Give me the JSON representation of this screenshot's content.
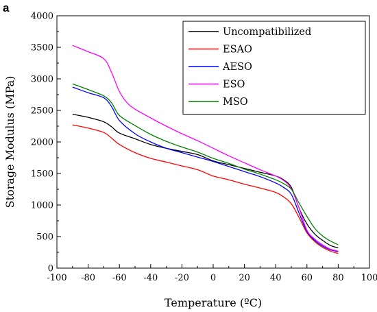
{
  "chart_data": {
    "type": "line",
    "panel_label": "a",
    "xlabel": "Temperature (ºC)",
    "ylabel": "Storage Modulus (MPa)",
    "xlim": [
      -100,
      100
    ],
    "ylim": [
      0,
      4000
    ],
    "xticks": [
      -100,
      -80,
      -60,
      -40,
      -20,
      0,
      20,
      40,
      60,
      80,
      100
    ],
    "yticks": [
      0,
      500,
      1000,
      1500,
      2000,
      2500,
      3000,
      3500,
      4000
    ],
    "legend_position": "top-right",
    "series": [
      {
        "name": "Uncompatibilized",
        "color": "#000000",
        "x": [
          -90,
          -80,
          -70,
          -65,
          -60,
          -50,
          -40,
          -30,
          -20,
          -10,
          0,
          10,
          20,
          30,
          40,
          45,
          50,
          55,
          60,
          65,
          70,
          75,
          80
        ],
        "y": [
          2440,
          2390,
          2320,
          2240,
          2140,
          2050,
          1960,
          1900,
          1850,
          1800,
          1700,
          1640,
          1580,
          1520,
          1460,
          1400,
          1280,
          950,
          700,
          540,
          440,
          360,
          320
        ]
      },
      {
        "name": "ESAO",
        "color": "#ff0000",
        "x": [
          -90,
          -80,
          -70,
          -65,
          -60,
          -50,
          -40,
          -30,
          -20,
          -10,
          0,
          10,
          20,
          30,
          40,
          45,
          50,
          55,
          60,
          65,
          70,
          75,
          80
        ],
        "y": [
          2270,
          2220,
          2150,
          2060,
          1960,
          1830,
          1740,
          1680,
          1620,
          1560,
          1460,
          1400,
          1330,
          1270,
          1200,
          1130,
          1020,
          800,
          560,
          420,
          330,
          270,
          230
        ]
      },
      {
        "name": "AESO",
        "color": "#0000ff",
        "x": [
          -90,
          -80,
          -70,
          -65,
          -60,
          -50,
          -40,
          -30,
          -20,
          -10,
          0,
          10,
          20,
          30,
          40,
          45,
          50,
          55,
          60,
          65,
          70,
          75,
          80
        ],
        "y": [
          2870,
          2780,
          2700,
          2560,
          2340,
          2130,
          2000,
          1900,
          1830,
          1760,
          1690,
          1610,
          1530,
          1450,
          1350,
          1280,
          1170,
          870,
          580,
          440,
          350,
          290,
          260
        ]
      },
      {
        "name": "ESO",
        "color": "#ff00ff",
        "x": [
          -90,
          -80,
          -70,
          -65,
          -60,
          -55,
          -50,
          -40,
          -30,
          -20,
          -10,
          0,
          10,
          20,
          30,
          40,
          45,
          50,
          55,
          60,
          65,
          70,
          75,
          80
        ],
        "y": [
          3530,
          3430,
          3320,
          3100,
          2800,
          2620,
          2520,
          2380,
          2250,
          2130,
          2020,
          1900,
          1780,
          1670,
          1560,
          1460,
          1390,
          1260,
          950,
          600,
          460,
          370,
          300,
          270
        ]
      },
      {
        "name": "MSO",
        "color": "#008000",
        "x": [
          -90,
          -80,
          -70,
          -65,
          -60,
          -50,
          -40,
          -30,
          -20,
          -10,
          0,
          10,
          20,
          30,
          40,
          45,
          50,
          55,
          60,
          65,
          70,
          75,
          80
        ],
        "y": [
          2920,
          2830,
          2730,
          2620,
          2420,
          2260,
          2120,
          2010,
          1920,
          1840,
          1740,
          1660,
          1570,
          1490,
          1400,
          1340,
          1250,
          1030,
          820,
          630,
          510,
          430,
          370
        ]
      }
    ]
  }
}
